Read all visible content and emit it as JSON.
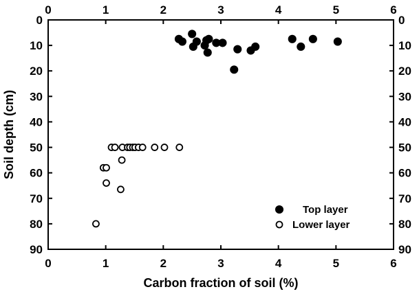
{
  "chart_data": {
    "type": "scatter",
    "xlabel": "Carbon fraction of soil (%)",
    "ylabel": "Soil depth (cm)",
    "xlim": [
      0,
      6
    ],
    "ylim": [
      0,
      90
    ],
    "y_inverted": true,
    "x_ticks": [
      "0",
      "1",
      "2",
      "3",
      "4",
      "5",
      "6"
    ],
    "y_ticks": [
      "0",
      "10",
      "20",
      "30",
      "40",
      "50",
      "60",
      "70",
      "80",
      "90"
    ],
    "ticks_on_all_sides": true,
    "grid": false,
    "legend_position": "bottom-right",
    "series": [
      {
        "name": "Top layer",
        "marker": "filled-circle",
        "points": [
          {
            "x": 2.27,
            "y": 7.5
          },
          {
            "x": 2.33,
            "y": 8.5
          },
          {
            "x": 2.5,
            "y": 5.5
          },
          {
            "x": 2.52,
            "y": 10.5
          },
          {
            "x": 2.58,
            "y": 8.5
          },
          {
            "x": 2.72,
            "y": 10.0
          },
          {
            "x": 2.75,
            "y": 8.0
          },
          {
            "x": 2.79,
            "y": 7.5
          },
          {
            "x": 2.77,
            "y": 12.8
          },
          {
            "x": 2.92,
            "y": 9.0
          },
          {
            "x": 3.03,
            "y": 9.0
          },
          {
            "x": 3.23,
            "y": 19.5
          },
          {
            "x": 3.29,
            "y": 11.5
          },
          {
            "x": 3.52,
            "y": 12.0
          },
          {
            "x": 3.6,
            "y": 10.5
          },
          {
            "x": 4.24,
            "y": 7.5
          },
          {
            "x": 4.39,
            "y": 10.5
          },
          {
            "x": 4.6,
            "y": 7.5
          },
          {
            "x": 5.03,
            "y": 8.5
          }
        ]
      },
      {
        "name": "Lower layer",
        "marker": "open-circle",
        "points": [
          {
            "x": 0.83,
            "y": 80.0
          },
          {
            "x": 0.96,
            "y": 58.0
          },
          {
            "x": 1.01,
            "y": 58.0
          },
          {
            "x": 1.01,
            "y": 64.0
          },
          {
            "x": 1.1,
            "y": 50.0
          },
          {
            "x": 1.16,
            "y": 50.0
          },
          {
            "x": 1.26,
            "y": 66.5
          },
          {
            "x": 1.28,
            "y": 55.0
          },
          {
            "x": 1.29,
            "y": 50.0
          },
          {
            "x": 1.38,
            "y": 50.0
          },
          {
            "x": 1.42,
            "y": 50.0
          },
          {
            "x": 1.47,
            "y": 50.0
          },
          {
            "x": 1.51,
            "y": 50.0
          },
          {
            "x": 1.57,
            "y": 50.0
          },
          {
            "x": 1.64,
            "y": 50.0
          },
          {
            "x": 1.85,
            "y": 50.0
          },
          {
            "x": 2.02,
            "y": 50.0
          },
          {
            "x": 2.28,
            "y": 50.0
          }
        ]
      }
    ]
  }
}
